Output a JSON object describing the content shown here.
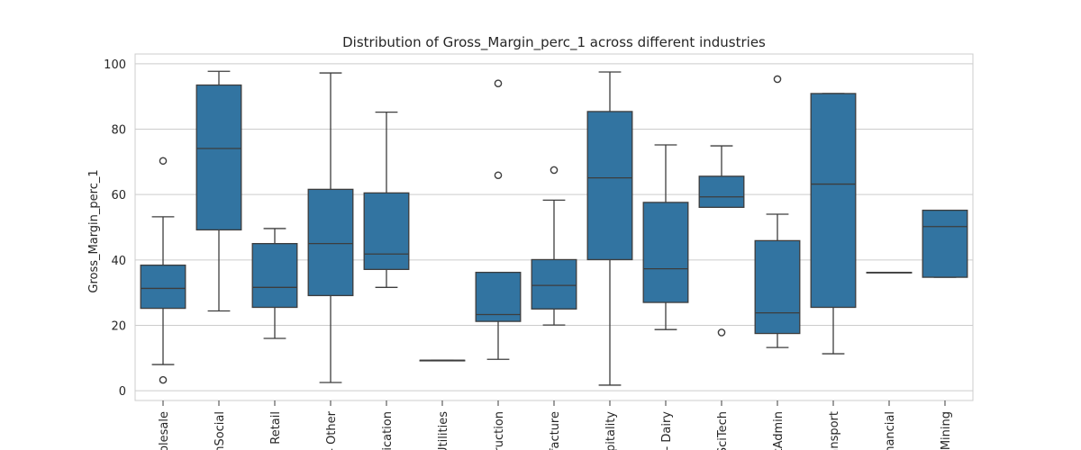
{
  "chart_data": {
    "type": "box",
    "title": "Distribution of Gross_Margin_perc_1 across different industries",
    "xlabel": "",
    "ylabel": "Gross_Margin_perc_1",
    "ylim": [
      -3,
      103
    ],
    "yticks": [
      0,
      20,
      40,
      60,
      80,
      100
    ],
    "grid": "horizontal",
    "legend": "none",
    "box_color": "#3274a1",
    "edge_color": "#3d3d3d",
    "grid_color": "#cccccc",
    "categories": [
      "olesale",
      "nSocial",
      "Retail",
      "- Other",
      "ication",
      "Utilities",
      "truction",
      "facture",
      "spitality",
      "- Dairy",
      "SciTech",
      "tAdmin",
      "ansport",
      "nancial",
      "Mining"
    ],
    "boxes": [
      {
        "category": "olesale",
        "whisker_low": 8,
        "q1": 25.2,
        "median": 31.3,
        "q3": 38.4,
        "whisker_high": 53.2,
        "outliers": [
          70.3,
          3.3
        ]
      },
      {
        "category": "nSocial",
        "whisker_low": 24.4,
        "q1": 49.2,
        "median": 74.1,
        "q3": 93.5,
        "whisker_high": 97.7,
        "outliers": []
      },
      {
        "category": "Retail",
        "whisker_low": 16,
        "q1": 25.5,
        "median": 31.6,
        "q3": 45,
        "whisker_high": 49.6,
        "outliers": []
      },
      {
        "category": "- Other",
        "whisker_low": 2.5,
        "q1": 29.1,
        "median": 45,
        "q3": 61.6,
        "whisker_high": 97.2,
        "outliers": []
      },
      {
        "category": "ication",
        "whisker_low": 31.6,
        "q1": 37.1,
        "median": 41.8,
        "q3": 60.5,
        "whisker_high": 85.2,
        "outliers": []
      },
      {
        "category": "Utilities",
        "whisker_low": 9.3,
        "q1": 9.3,
        "median": 9.3,
        "q3": 9.3,
        "whisker_high": 9.3,
        "outliers": []
      },
      {
        "category": "truction",
        "whisker_low": 9.6,
        "q1": 21.2,
        "median": 23.3,
        "q3": 36.2,
        "whisker_high": 36.2,
        "outliers": [
          65.9,
          94
        ]
      },
      {
        "category": "facture",
        "whisker_low": 20.1,
        "q1": 25,
        "median": 32.2,
        "q3": 40.1,
        "whisker_high": 58.3,
        "outliers": [
          67.5
        ]
      },
      {
        "category": "spitality",
        "whisker_low": 1.7,
        "q1": 40.1,
        "median": 65.1,
        "q3": 85.4,
        "whisker_high": 97.5,
        "outliers": []
      },
      {
        "category": "- Dairy",
        "whisker_low": 18.7,
        "q1": 27,
        "median": 37.3,
        "q3": 57.6,
        "whisker_high": 75.2,
        "outliers": []
      },
      {
        "category": "SciTech",
        "whisker_low": 56.1,
        "q1": 56.1,
        "median": 59.3,
        "q3": 65.6,
        "whisker_high": 74.9,
        "outliers": [
          17.8
        ]
      },
      {
        "category": "tAdmin",
        "whisker_low": 13.2,
        "q1": 17.5,
        "median": 23.8,
        "q3": 45.9,
        "whisker_high": 54,
        "outliers": [
          95.3
        ]
      },
      {
        "category": "ansport",
        "whisker_low": 11.3,
        "q1": 25.5,
        "median": 63.2,
        "q3": 90.9,
        "whisker_high": 90.9,
        "outliers": []
      },
      {
        "category": "nancial",
        "whisker_low": 36.2,
        "q1": 36.2,
        "median": 36.2,
        "q3": 36.2,
        "whisker_high": 36.2,
        "outliers": []
      },
      {
        "category": "Mining",
        "whisker_low": 34.7,
        "q1": 34.7,
        "median": 50.2,
        "q3": 55.2,
        "whisker_high": 55.2,
        "outliers": []
      }
    ]
  }
}
